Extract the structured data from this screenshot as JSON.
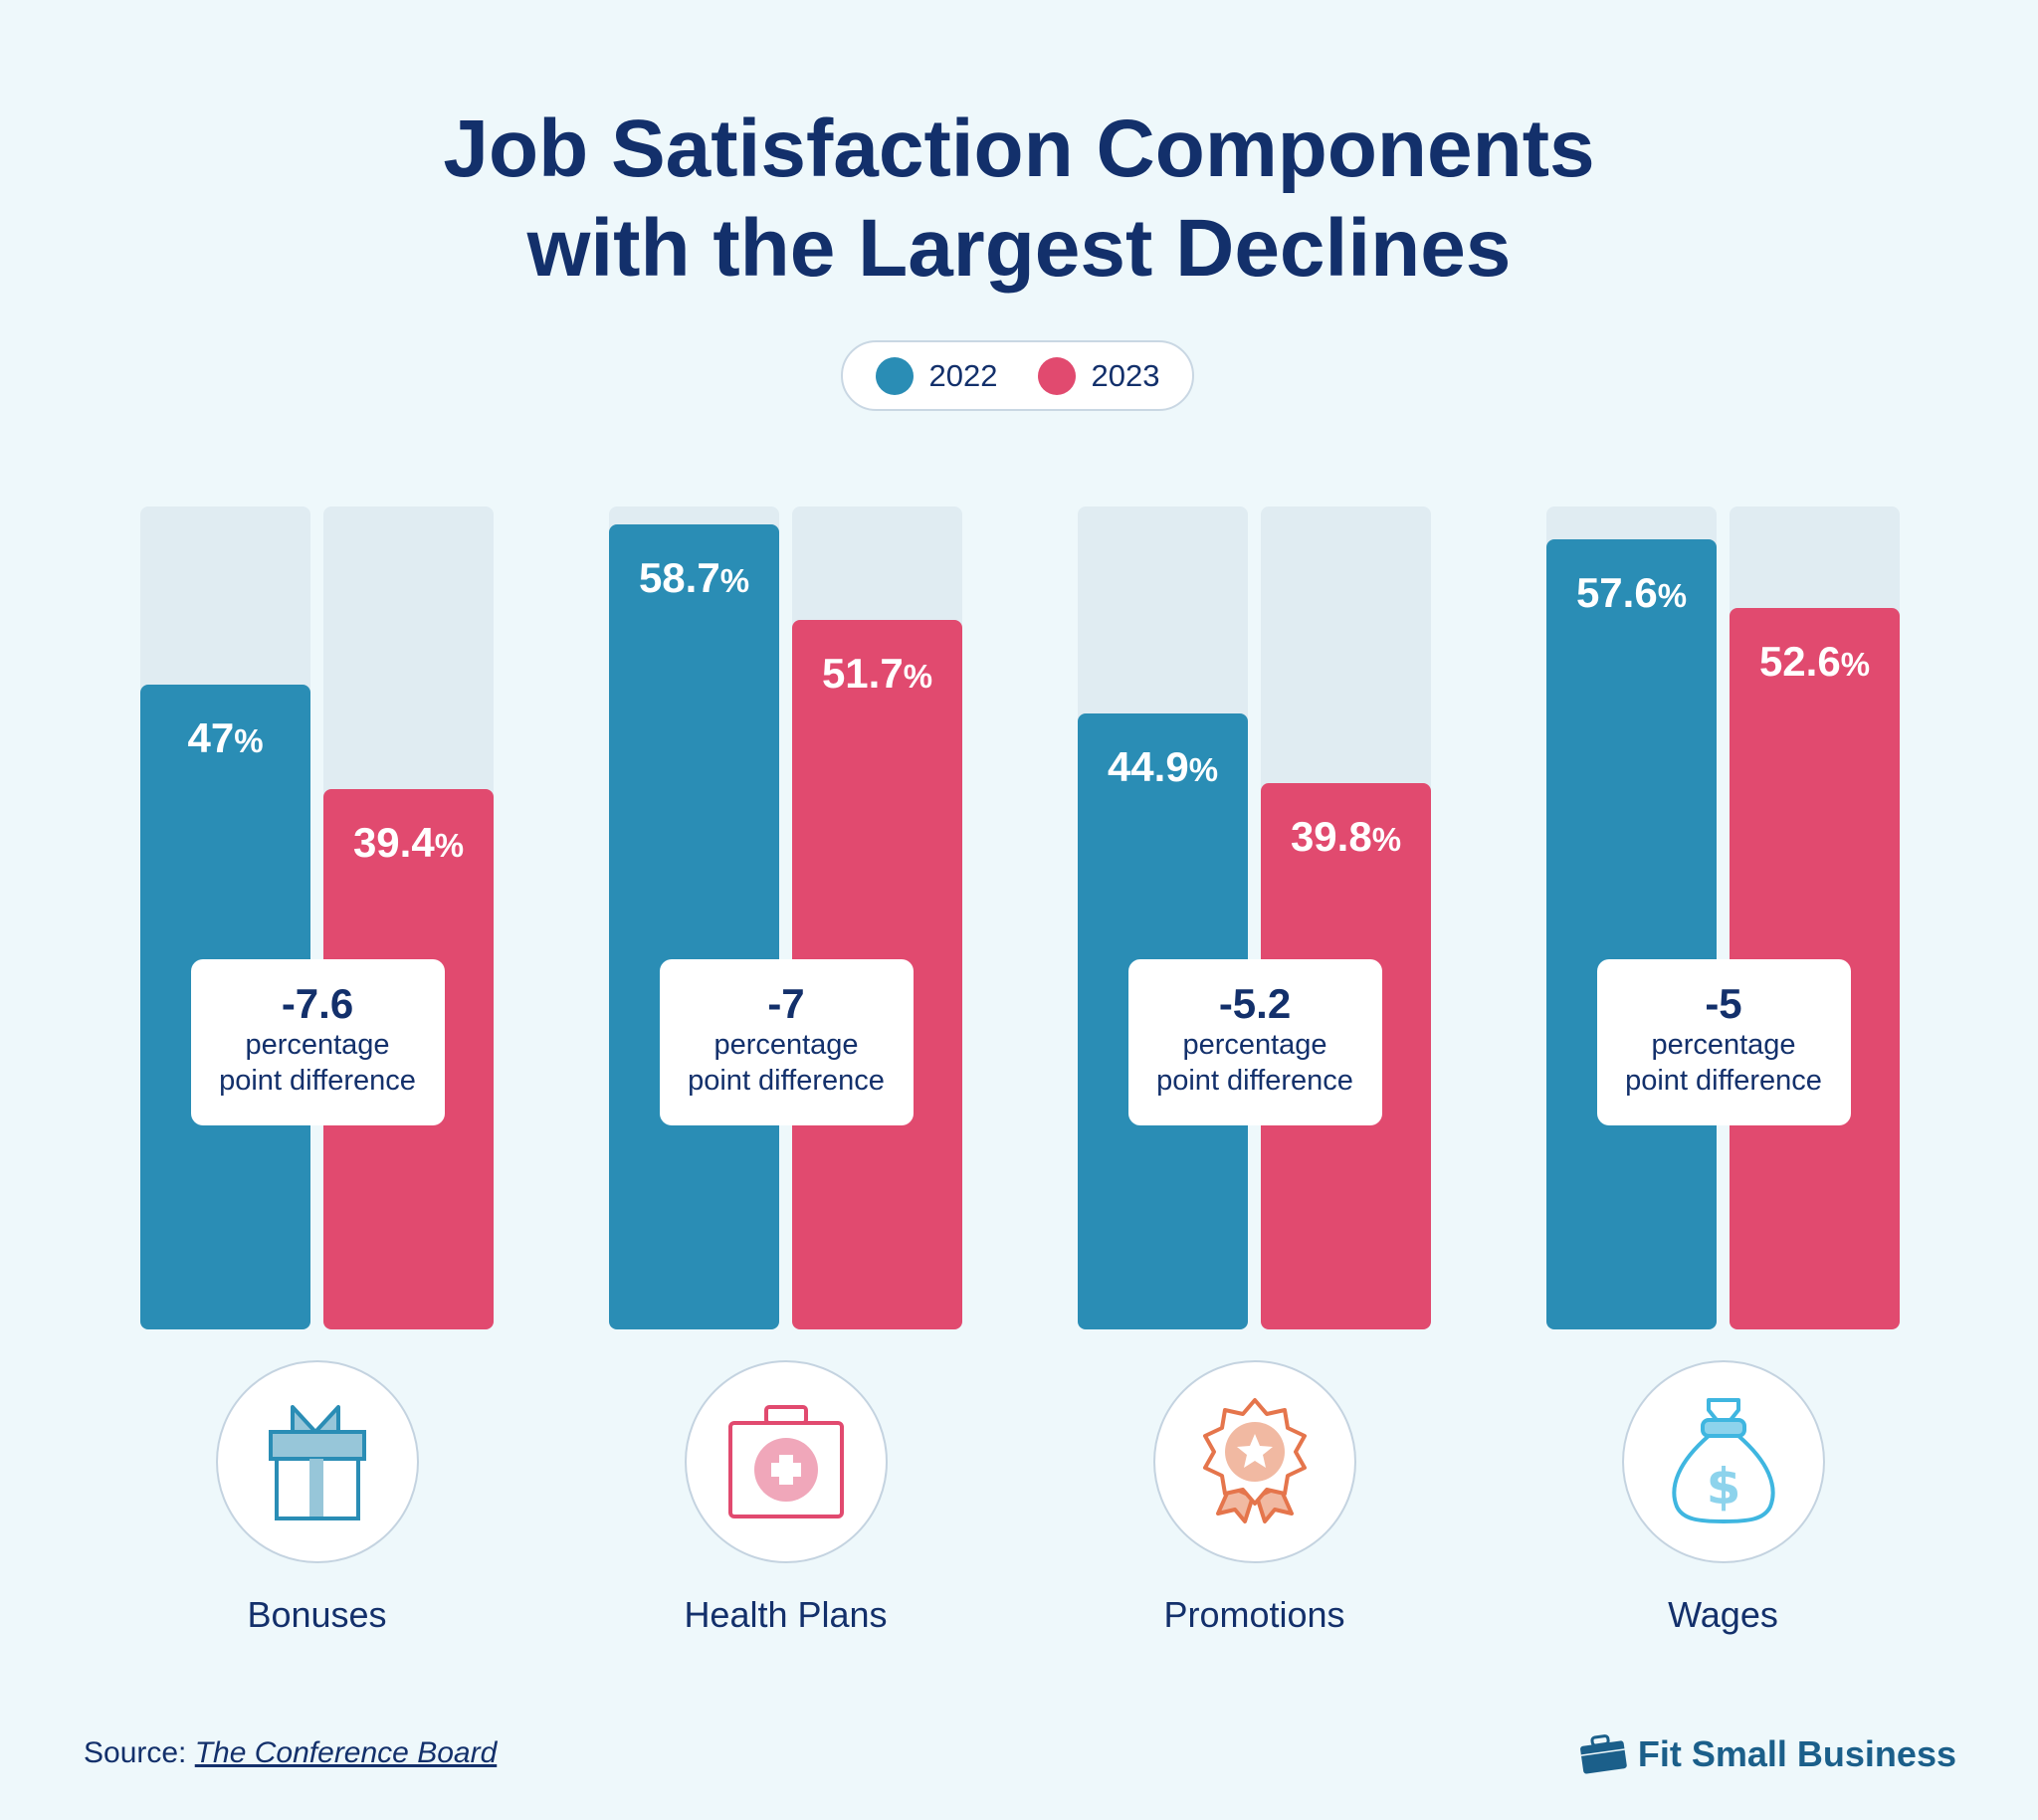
{
  "chart_data": {
    "type": "bar",
    "title": "Job Satisfaction Components with the Largest Declines",
    "title_lines": [
      "Job Satisfaction Components",
      "with the Largest Declines"
    ],
    "categories": [
      "Bonuses",
      "Health Plans",
      "Promotions",
      "Wages"
    ],
    "series": [
      {
        "name": "2022",
        "values": [
          47,
          58.7,
          44.9,
          57.6
        ],
        "labels": [
          "47",
          "58.7",
          "44.9",
          "57.6"
        ],
        "color": "#2a8db5"
      },
      {
        "name": "2023",
        "values": [
          39.4,
          51.7,
          39.8,
          52.6
        ],
        "labels": [
          "39.4",
          "51.7",
          "39.8",
          "52.6"
        ],
        "color": "#e14a6f"
      }
    ],
    "unit": "%",
    "ylim": [
      0,
      60
    ],
    "grid": false,
    "legend_position": "top-center",
    "differences": [
      "-7.6",
      "-7",
      "-5.2",
      "-5"
    ],
    "difference_text": [
      "percentage",
      "point difference"
    ],
    "icons": [
      "gift-icon",
      "first-aid-kit-icon",
      "award-badge-icon",
      "money-bag-icon"
    ]
  },
  "source": {
    "label": "Source:",
    "link": "The Conference Board"
  },
  "brand": {
    "name": "Fit Small Business",
    "icon": "briefcase-icon",
    "color": "#1b5f8a"
  }
}
